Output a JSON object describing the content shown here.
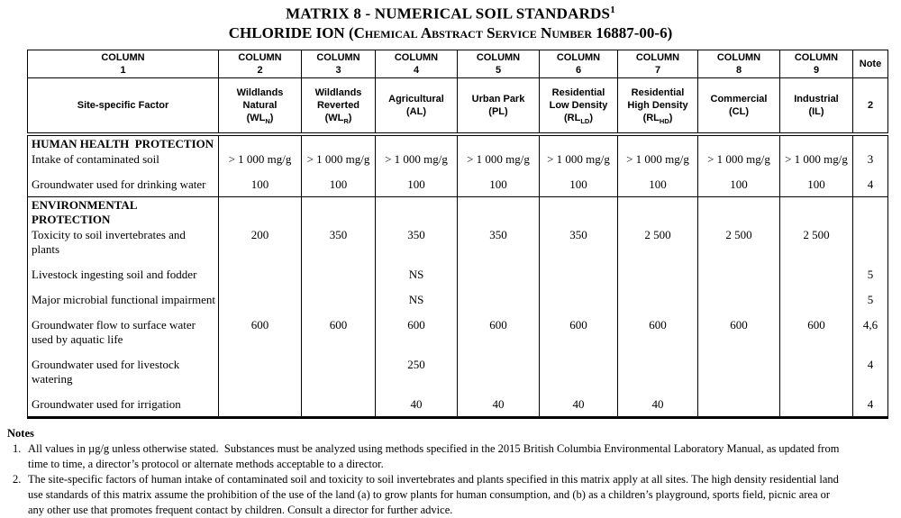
{
  "title": {
    "line1": "MATRIX 8 - NUMERICAL SOIL STANDARDS",
    "line1_sup": "1",
    "line2_prefix": "CHLORIDE ION (",
    "line2_smallcaps": "Chemical Abstract Service Number",
    "line2_suffix": " 16887-00-6)"
  },
  "table": {
    "column_header_word": "COLUMN",
    "note_header": "Note",
    "note_row2": "2",
    "columns": [
      {
        "num": "1",
        "factor_label": "Site-specific Factor"
      },
      {
        "num": "2",
        "name_lines": [
          "Wildlands",
          "Natural"
        ],
        "abbr": {
          "pre": "(WL",
          "sub": "N",
          "post": ")"
        }
      },
      {
        "num": "3",
        "name_lines": [
          "Wildlands",
          "Reverted"
        ],
        "abbr": {
          "pre": "(WL",
          "sub": "R",
          "post": ")"
        }
      },
      {
        "num": "4",
        "name_lines": [
          "Agricultural"
        ],
        "abbr": {
          "pre": "(AL",
          "sub": "",
          "post": ")"
        }
      },
      {
        "num": "5",
        "name_lines": [
          "Urban Park"
        ],
        "abbr": {
          "pre": "(PL",
          "sub": "",
          "post": ")"
        }
      },
      {
        "num": "6",
        "name_lines": [
          "Residential",
          "Low Density"
        ],
        "abbr": {
          "pre": "(RL",
          "sub": "LD",
          "post": ")"
        }
      },
      {
        "num": "7",
        "name_lines": [
          "Residential",
          "High Density"
        ],
        "abbr": {
          "pre": "(RL",
          "sub": "HD",
          "post": ")"
        }
      },
      {
        "num": "8",
        "name_lines": [
          "Commercial"
        ],
        "abbr": {
          "pre": "(CL",
          "sub": "",
          "post": ")"
        }
      },
      {
        "num": "9",
        "name_lines": [
          "Industrial"
        ],
        "abbr": {
          "pre": "(IL",
          "sub": "",
          "post": ")"
        }
      }
    ],
    "sections": [
      {
        "title_lines": [
          "HUMAN HEALTH  PROTECTION"
        ],
        "rows": [
          {
            "label": "Intake of contaminated soil",
            "values": [
              "> 1 000 mg/g",
              "> 1 000 mg/g",
              "> 1 000 mg/g",
              "> 1 000 mg/g",
              "> 1 000 mg/g",
              "> 1 000 mg/g",
              "> 1 000 mg/g",
              "> 1 000 mg/g"
            ],
            "note": "3"
          },
          {
            "label": "Groundwater used for drinking water",
            "values": [
              "100",
              "100",
              "100",
              "100",
              "100",
              "100",
              "100",
              "100"
            ],
            "note": "4"
          }
        ]
      },
      {
        "title_lines": [
          "ENVIRONMENTAL",
          "PROTECTION"
        ],
        "rows": [
          {
            "label": "Toxicity to soil invertebrates and plants",
            "values": [
              "200",
              "350",
              "350",
              "350",
              "350",
              "2 500",
              "2 500",
              "2 500"
            ],
            "note": ""
          },
          {
            "label": "Livestock ingesting soil and fodder",
            "values": [
              "",
              "",
              "NS",
              "",
              "",
              "",
              "",
              ""
            ],
            "note": "5"
          },
          {
            "label": "Major microbial functional impairment",
            "values": [
              "",
              "",
              "NS",
              "",
              "",
              "",
              "",
              ""
            ],
            "note": "5"
          },
          {
            "label": "Groundwater flow to surface water used by aquatic life",
            "values": [
              "600",
              "600",
              "600",
              "600",
              "600",
              "600",
              "600",
              "600"
            ],
            "note": "4,6"
          },
          {
            "label": "Groundwater used for livestock watering",
            "values": [
              "",
              "",
              "250",
              "",
              "",
              "",
              "",
              ""
            ],
            "note": "4"
          },
          {
            "label": "Groundwater used for irrigation",
            "values": [
              "",
              "",
              "40",
              "40",
              "40",
              "40",
              "",
              ""
            ],
            "note": "4"
          }
        ]
      }
    ]
  },
  "notes": {
    "heading": "Notes",
    "items": [
      {
        "num": "1.",
        "text": "All values in µg/g unless otherwise stated.  Substances must be analyzed using methods specified in the 2015 British Columbia Environmental Laboratory Manual, as updated from time to time, a director’s protocol or alternate methods acceptable to a director."
      },
      {
        "num": "2.",
        "text": "The site-specific factors of human intake of contaminated soil and toxicity to soil invertebrates and plants specified in this matrix apply at all sites. The high density residential land use standards of this matrix assume the prohibition of the use of the land (a) to grow plants for human consumption, and (b) as a children’s playground, sports field, picnic area or any other use that promotes frequent contact by children. Consult a director for further advice."
      }
    ]
  }
}
